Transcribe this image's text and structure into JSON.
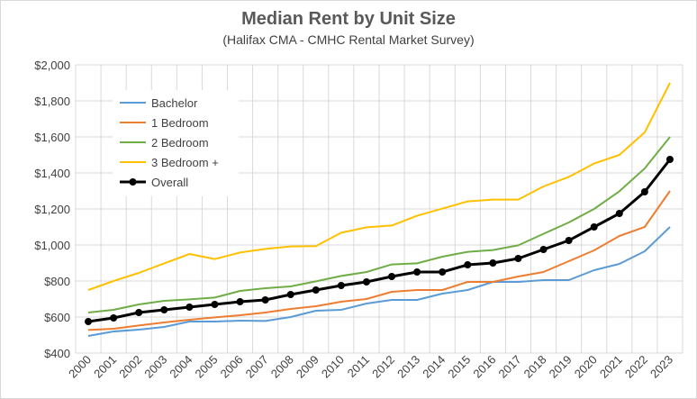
{
  "chart_data": {
    "type": "line",
    "title": "Median Rent by Unit Size",
    "subtitle": "(Halifax CMA - CMHC Rental Market Survey)",
    "xlabel": "",
    "ylabel": "",
    "x": [
      "2000",
      "2001",
      "2002",
      "2003",
      "2004",
      "2005",
      "2006",
      "2007",
      "2008",
      "2009",
      "2010",
      "2011",
      "2012",
      "2013",
      "2014",
      "2015",
      "2016",
      "2017",
      "2018",
      "2019",
      "2020",
      "2021",
      "2022",
      "2023"
    ],
    "ylim": [
      400,
      2000
    ],
    "yticks": [
      400,
      600,
      800,
      1000,
      1200,
      1400,
      1600,
      1800,
      2000
    ],
    "ytick_labels": [
      "$400",
      "$600",
      "$800",
      "$1,000",
      "$1,200",
      "$1,400",
      "$1,600",
      "$1,800",
      "$2,000"
    ],
    "grid": true,
    "legend_position": "top-left",
    "series": [
      {
        "name": "Bachelor",
        "color": "#5b9bd5",
        "marker": false,
        "values": [
          495,
          520,
          530,
          545,
          575,
          575,
          580,
          578,
          600,
          635,
          640,
          675,
          695,
          695,
          730,
          750,
          795,
          795,
          805,
          805,
          860,
          895,
          965,
          1100
        ]
      },
      {
        "name": "1 Bedroom",
        "color": "#ed7d31",
        "marker": false,
        "values": [
          528,
          535,
          553,
          570,
          585,
          598,
          610,
          625,
          645,
          660,
          685,
          700,
          740,
          750,
          750,
          795,
          795,
          825,
          850,
          910,
          970,
          1050,
          1100,
          1300
        ]
      },
      {
        "name": "2 Bedroom",
        "color": "#70ad47",
        "marker": false,
        "values": [
          625,
          640,
          670,
          690,
          698,
          708,
          745,
          760,
          770,
          798,
          828,
          850,
          892,
          898,
          935,
          962,
          972,
          998,
          1062,
          1125,
          1200,
          1298,
          1425,
          1600
        ]
      },
      {
        "name": "3 Bedroom +",
        "color": "#ffc000",
        "marker": false,
        "values": [
          750,
          800,
          845,
          898,
          950,
          922,
          958,
          978,
          992,
          994,
          1068,
          1098,
          1108,
          1162,
          1202,
          1242,
          1252,
          1252,
          1325,
          1378,
          1452,
          1500,
          1625,
          1900
        ]
      },
      {
        "name": "Overall",
        "color": "#000000",
        "marker": true,
        "values": [
          575,
          595,
          625,
          640,
          655,
          670,
          685,
          695,
          725,
          750,
          775,
          795,
          825,
          850,
          850,
          890,
          900,
          925,
          975,
          1025,
          1100,
          1175,
          1295,
          1475
        ]
      }
    ]
  }
}
